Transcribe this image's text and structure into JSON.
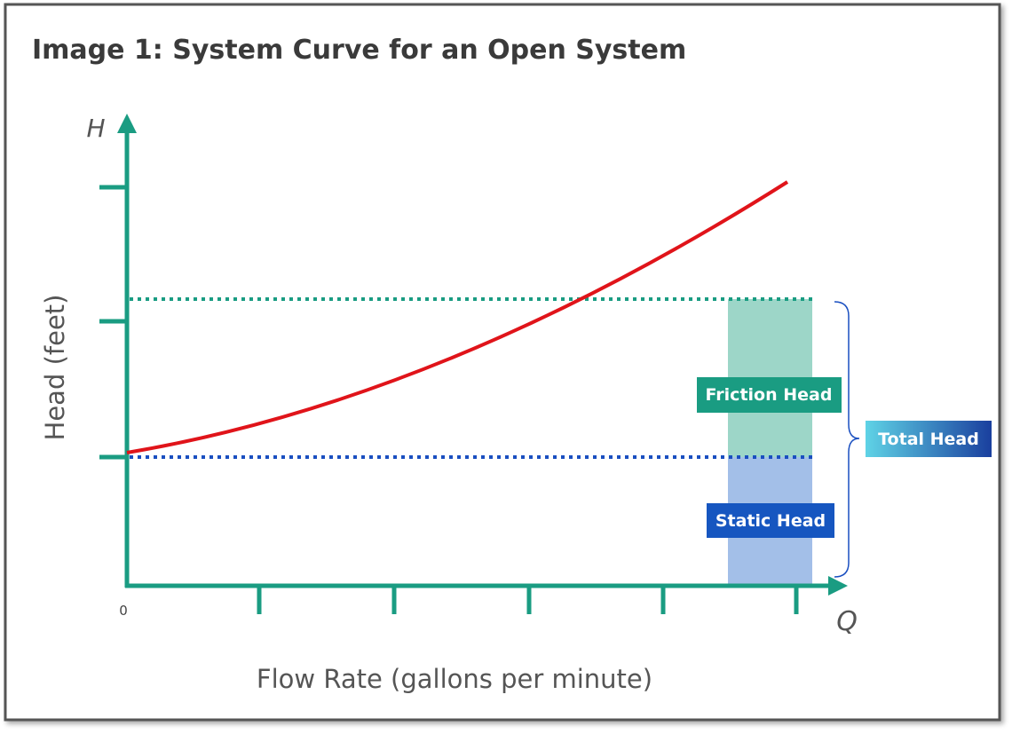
{
  "title": "Image 1: System Curve for an Open System",
  "y_axis": {
    "symbol": "H",
    "label": "Head (feet)"
  },
  "x_axis": {
    "symbol": "Q",
    "label": "Flow Rate (gallons per minute)",
    "origin": "0"
  },
  "labels": {
    "friction": "Friction Head",
    "static": "Static Head",
    "total": "Total Head"
  }
}
